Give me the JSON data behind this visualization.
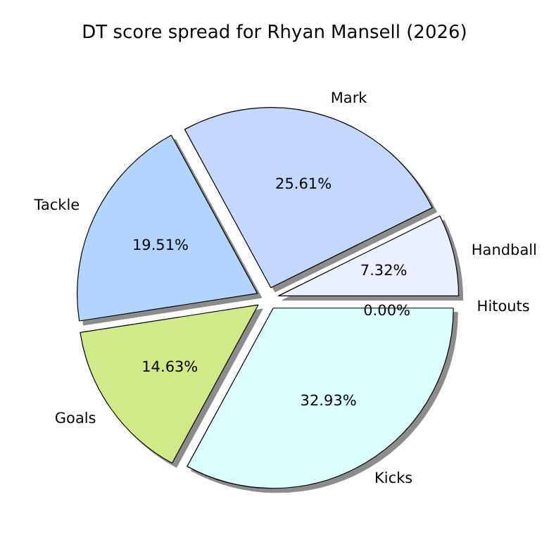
{
  "chart_data": {
    "type": "pie",
    "title": "DT score spread for Rhyan Mansell (2026)",
    "categories": [
      "Handball",
      "Mark",
      "Tackle",
      "Goals",
      "Kicks",
      "Hitouts"
    ],
    "values": [
      7.32,
      25.61,
      19.51,
      14.63,
      32.93,
      0.0
    ],
    "colors": [
      "#eaf0ff",
      "#c4d8ff",
      "#b3d4ff",
      "#d0ea8a",
      "#dcffff",
      "#ffffff"
    ],
    "value_labels": [
      "7.32%",
      "25.61%",
      "19.51%",
      "14.63%",
      "32.93%",
      "0.00%"
    ],
    "legend": false
  }
}
